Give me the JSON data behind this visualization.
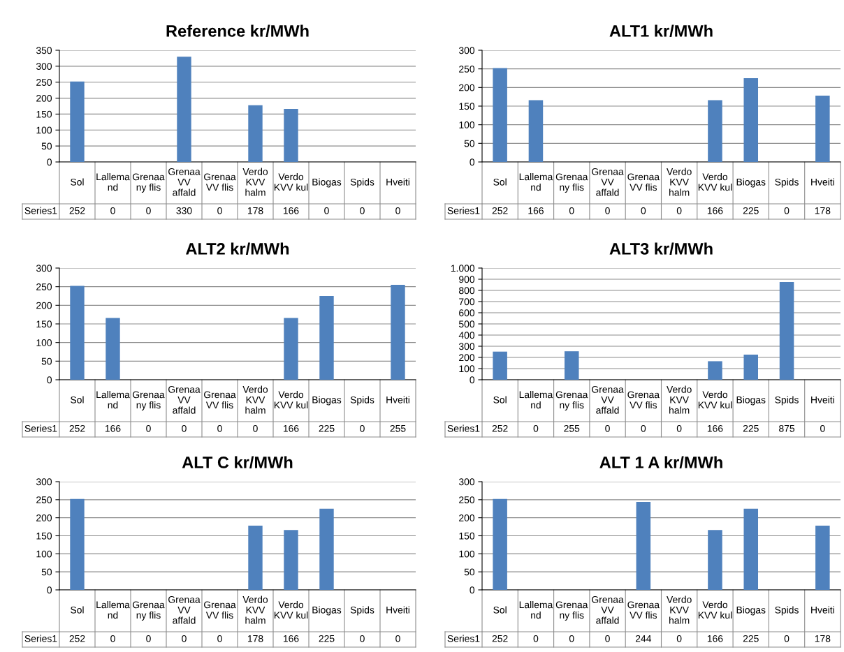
{
  "chart_data": [
    {
      "type": "bar",
      "title": "Reference kr/MWh",
      "categories": [
        "Sol",
        "Lallema\nnd",
        "Grenaa\nny flis",
        "Grenaa\nVV\naffald",
        "Grenaa\nVV flis",
        "Verdo\nKVV\nhalm",
        "Verdo\nKVV kul",
        "Biogas",
        "Spids",
        "Hveiti"
      ],
      "series": [
        {
          "name": "Series1",
          "color": "#4f81bd",
          "values": [
            252,
            0,
            0,
            330,
            0,
            178,
            166,
            0,
            0,
            0
          ]
        }
      ],
      "ylim": [
        0,
        350
      ],
      "yticks": [
        0,
        50,
        100,
        150,
        200,
        250,
        300,
        350
      ],
      "grid": "y",
      "data_labels": true
    },
    {
      "type": "bar",
      "title": "ALT1 kr/MWh",
      "categories": [
        "Sol",
        "Lallema\nnd",
        "Grenaa\nny flis",
        "Grenaa\nVV\naffald",
        "Grenaa\nVV flis",
        "Verdo\nKVV\nhalm",
        "Verdo\nKVV kul",
        "Biogas",
        "Spids",
        "Hveiti"
      ],
      "series": [
        {
          "name": "Series1",
          "color": "#4f81bd",
          "values": [
            252,
            166,
            0,
            0,
            0,
            0,
            166,
            225,
            0,
            178
          ]
        }
      ],
      "ylim": [
        0,
        300
      ],
      "yticks": [
        0,
        50,
        100,
        150,
        200,
        250,
        300
      ],
      "grid": "y",
      "data_labels": true
    },
    {
      "type": "bar",
      "title": "ALT2 kr/MWh",
      "categories": [
        "Sol",
        "Lallema\nnd",
        "Grenaa\nny flis",
        "Grenaa\nVV\naffald",
        "Grenaa\nVV flis",
        "Verdo\nKVV\nhalm",
        "Verdo\nKVV kul",
        "Biogas",
        "Spids",
        "Hveiti"
      ],
      "series": [
        {
          "name": "Series1",
          "color": "#4f81bd",
          "values": [
            252,
            166,
            0,
            0,
            0,
            0,
            166,
            225,
            0,
            255
          ]
        }
      ],
      "ylim": [
        0,
        300
      ],
      "yticks": [
        0,
        50,
        100,
        150,
        200,
        250,
        300
      ],
      "grid": "y",
      "data_labels": true
    },
    {
      "type": "bar",
      "title": "ALT3 kr/MWh",
      "categories": [
        "Sol",
        "Lallema\nnd",
        "Grenaa\nny flis",
        "Grenaa\nVV\naffald",
        "Grenaa\nVV flis",
        "Verdo\nKVV\nhalm",
        "Verdo\nKVV kul",
        "Biogas",
        "Spids",
        "Hveiti"
      ],
      "series": [
        {
          "name": "Series1",
          "color": "#4f81bd",
          "values": [
            252,
            0,
            255,
            0,
            0,
            0,
            166,
            225,
            875,
            0
          ]
        }
      ],
      "ylim": [
        0,
        1000
      ],
      "yticks": [
        0,
        100,
        200,
        300,
        400,
        500,
        600,
        700,
        800,
        900,
        {
          "value": 1000,
          "label": "1.000"
        }
      ],
      "grid": "y",
      "data_labels": true
    },
    {
      "type": "bar",
      "title": "ALT C kr/MWh",
      "categories": [
        "Sol",
        "Lallema\nnd",
        "Grenaa\nny flis",
        "Grenaa\nVV\naffald",
        "Grenaa\nVV flis",
        "Verdo\nKVV\nhalm",
        "Verdo\nKVV kul",
        "Biogas",
        "Spids",
        "Hveiti"
      ],
      "series": [
        {
          "name": "Series1",
          "color": "#4f81bd",
          "values": [
            252,
            0,
            0,
            0,
            0,
            178,
            166,
            225,
            0,
            0
          ]
        }
      ],
      "ylim": [
        0,
        300
      ],
      "yticks": [
        0,
        50,
        100,
        150,
        200,
        250,
        300
      ],
      "grid": "y",
      "data_labels": true
    },
    {
      "type": "bar",
      "title": "ALT 1 A kr/MWh",
      "categories": [
        "Sol",
        "Lallema\nnd",
        "Grenaa\nny flis",
        "Grenaa\nVV\naffald",
        "Grenaa\nVV flis",
        "Verdo\nKVV\nhalm",
        "Verdo\nKVV kul",
        "Biogas",
        "Spids",
        "Hveiti"
      ],
      "series": [
        {
          "name": "Series1",
          "color": "#4f81bd",
          "values": [
            252,
            0,
            0,
            0,
            244,
            0,
            166,
            225,
            0,
            178
          ]
        }
      ],
      "ylim": [
        0,
        300
      ],
      "yticks": [
        0,
        50,
        100,
        150,
        200,
        250,
        300
      ],
      "grid": "y",
      "data_labels": true
    }
  ]
}
